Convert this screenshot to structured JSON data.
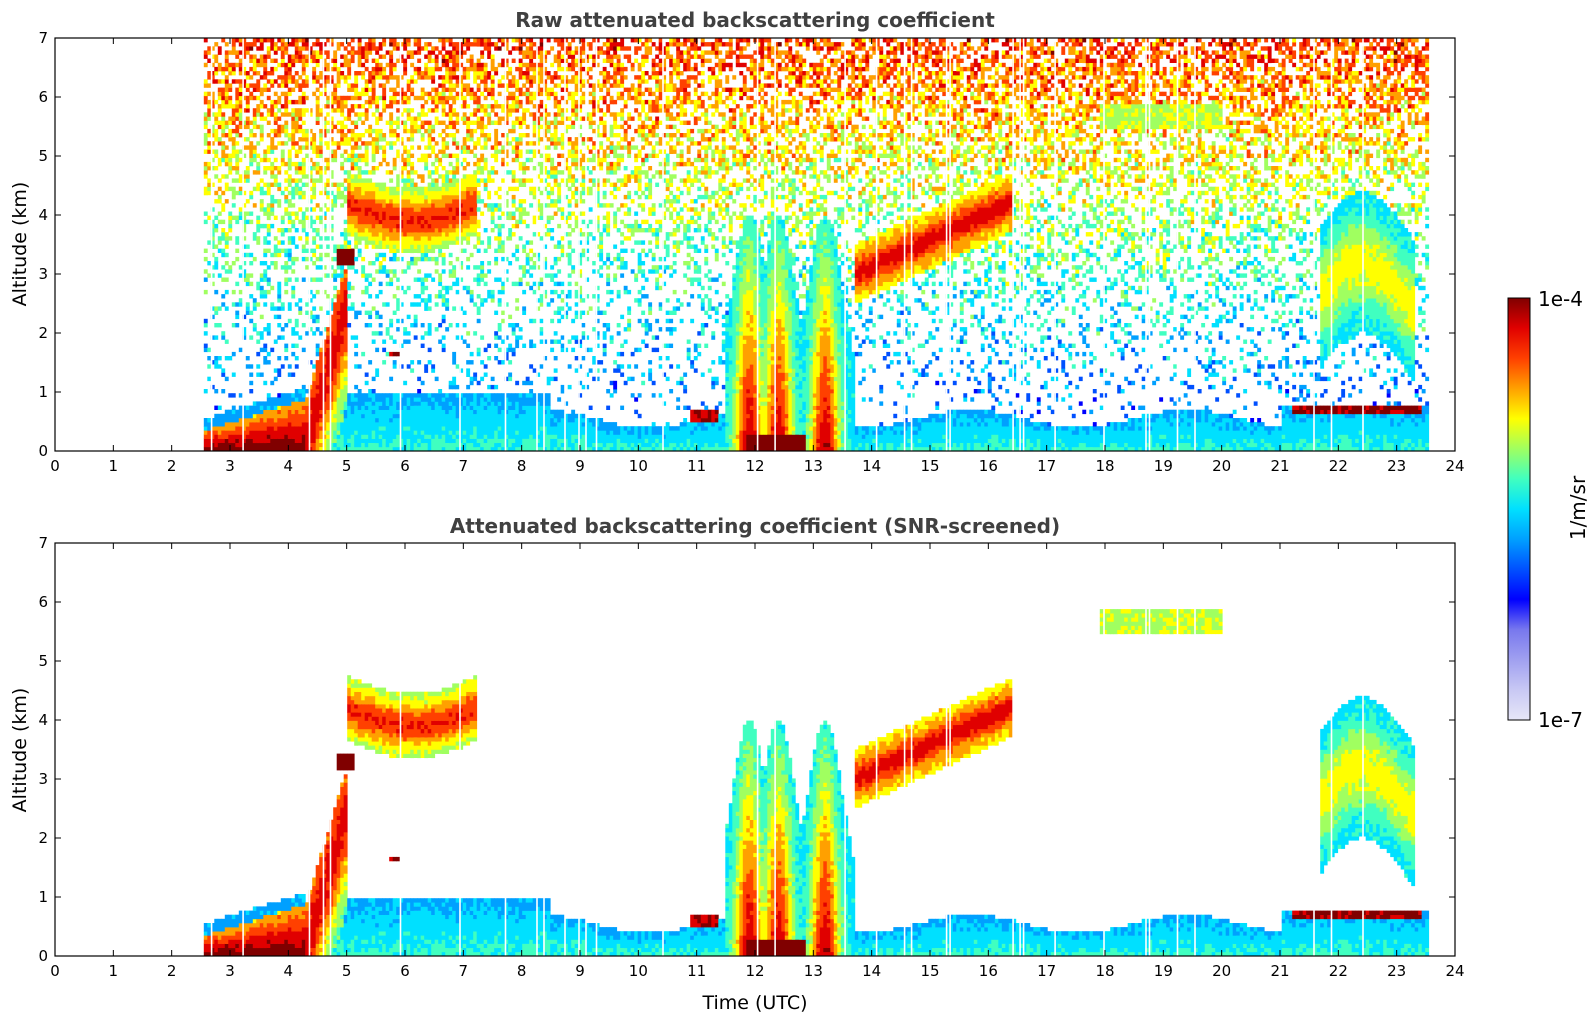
{
  "chart_data": [
    {
      "type": "heatmap",
      "title": "Raw attenuated backscattering coefficient",
      "xlabel": "",
      "ylabel": "Altitude (km)",
      "xlim": [
        0,
        24
      ],
      "ylim": [
        0,
        7
      ],
      "xticks": [
        "0",
        "1",
        "2",
        "3",
        "4",
        "5",
        "6",
        "7",
        "8",
        "9",
        "10",
        "11",
        "12",
        "13",
        "14",
        "15",
        "16",
        "17",
        "18",
        "19",
        "20",
        "21",
        "22",
        "23",
        "24"
      ],
      "yticks": [
        "0",
        "1",
        "2",
        "3",
        "4",
        "5",
        "6",
        "7"
      ],
      "data_start_utc": 2.55,
      "data_end_utc": 23.55,
      "features": [
        {
          "kind": "boundary_layer_high_backscatter",
          "x": [
            2.55,
            4.3
          ],
          "y": [
            0,
            0.9
          ]
        },
        {
          "kind": "rising_aerosol_plume",
          "x": [
            4.1,
            5.0
          ],
          "y": [
            0,
            3.3
          ]
        },
        {
          "kind": "elevated_layer",
          "x": [
            5.0,
            7.2
          ],
          "y": [
            3.5,
            5.0
          ]
        },
        {
          "kind": "convective_cloud",
          "x": [
            11.5,
            13.7
          ],
          "y": [
            0,
            3.6
          ]
        },
        {
          "kind": "rising_cloud_layer",
          "x": [
            13.7,
            16.4
          ],
          "y": [
            2.8,
            5.0
          ]
        },
        {
          "kind": "high_thin_layer",
          "x": [
            17.9,
            20.0
          ],
          "y": [
            5.4,
            5.9
          ]
        },
        {
          "kind": "cloud_plume",
          "x": [
            21.7,
            23.3
          ],
          "y": [
            1.0,
            4.0
          ]
        },
        {
          "kind": "low_cloud_base",
          "x": [
            21.2,
            23.4
          ],
          "y": [
            0.55,
            0.8
          ]
        }
      ]
    },
    {
      "type": "heatmap",
      "title": "Attenuated backscattering coefficient (SNR-screened)",
      "xlabel": "Time (UTC)",
      "ylabel": "Altitude (km)",
      "xlim": [
        0,
        24
      ],
      "ylim": [
        0,
        7
      ],
      "xticks": [
        "0",
        "1",
        "2",
        "3",
        "4",
        "5",
        "6",
        "7",
        "8",
        "9",
        "10",
        "11",
        "12",
        "13",
        "14",
        "15",
        "16",
        "17",
        "18",
        "19",
        "20",
        "21",
        "22",
        "23",
        "24"
      ],
      "yticks": [
        "0",
        "1",
        "2",
        "3",
        "4",
        "5",
        "6",
        "7"
      ],
      "data_start_utc": 2.55,
      "data_end_utc": 23.55,
      "features": [
        {
          "kind": "boundary_layer_high_backscatter",
          "x": [
            2.55,
            4.3
          ],
          "y": [
            0,
            0.9
          ]
        },
        {
          "kind": "rising_aerosol_plume",
          "x": [
            4.1,
            5.0
          ],
          "y": [
            0,
            3.3
          ]
        },
        {
          "kind": "elevated_layer",
          "x": [
            5.0,
            7.2
          ],
          "y": [
            3.5,
            5.0
          ]
        },
        {
          "kind": "convective_cloud",
          "x": [
            11.5,
            13.7
          ],
          "y": [
            0,
            3.6
          ]
        },
        {
          "kind": "rising_cloud_layer",
          "x": [
            13.7,
            16.4
          ],
          "y": [
            2.8,
            5.0
          ]
        },
        {
          "kind": "high_thin_layer",
          "x": [
            17.9,
            20.0
          ],
          "y": [
            5.4,
            5.9
          ]
        },
        {
          "kind": "cloud_plume",
          "x": [
            21.7,
            23.3
          ],
          "y": [
            1.0,
            4.0
          ]
        },
        {
          "kind": "low_cloud_base",
          "x": [
            21.2,
            23.4
          ],
          "y": [
            0.55,
            0.8
          ]
        }
      ]
    }
  ],
  "colorbar": {
    "label": "1/m/sr",
    "max_label": "1e-4",
    "min_label": "1e-7",
    "scale": "log",
    "colormap": "jet",
    "colors": [
      "#e6e6f8",
      "#c8c8f4",
      "#a0a0f0",
      "#7878ee",
      "#0000ff",
      "#0050ff",
      "#00a0ff",
      "#00e0ff",
      "#40ffc0",
      "#a0ff60",
      "#ffff00",
      "#ffa000",
      "#ff4000",
      "#e00000",
      "#800000"
    ]
  }
}
